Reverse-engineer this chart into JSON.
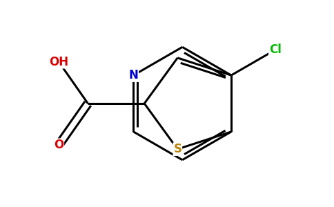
{
  "background_color": "#ffffff",
  "bond_color": "#000000",
  "atom_colors": {
    "N": "#0000cc",
    "S": "#b8860b",
    "O": "#dd0000",
    "Cl": "#00bb00",
    "C": "#000000"
  },
  "figsize": [
    4.84,
    3.0
  ],
  "dpi": 100
}
